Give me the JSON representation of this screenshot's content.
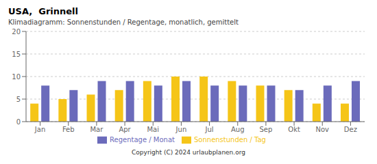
{
  "chart_data": {
    "type": "bar",
    "title": "USA,  Grinnell",
    "subtitle": "Klimadiagramm: Sonnenstunden / Regentage, monatlich, gemittelt",
    "categories": [
      "Jan",
      "Feb",
      "Mar",
      "Apr",
      "Mai",
      "Jun",
      "Jul",
      "Aug",
      "Sep",
      "Okt",
      "Nov",
      "Dez"
    ],
    "series": [
      {
        "name": "Sonnenstunden / Tag",
        "color": "#F5C518",
        "values": [
          4,
          5,
          6,
          7,
          9,
          10,
          10,
          9,
          8,
          7,
          4,
          4
        ]
      },
      {
        "name": "Regentage / Monat",
        "color": "#6B6BBB",
        "values": [
          8,
          7,
          9,
          9,
          8,
          9,
          8,
          8,
          8,
          7,
          8,
          9
        ]
      }
    ],
    "ylim": [
      0,
      20
    ],
    "yticks": [
      0,
      5,
      10,
      15,
      20
    ],
    "grid": true,
    "legend": "bottom",
    "annotations": [
      "Copyright (C) 2024 urlaubplanen.org"
    ]
  }
}
